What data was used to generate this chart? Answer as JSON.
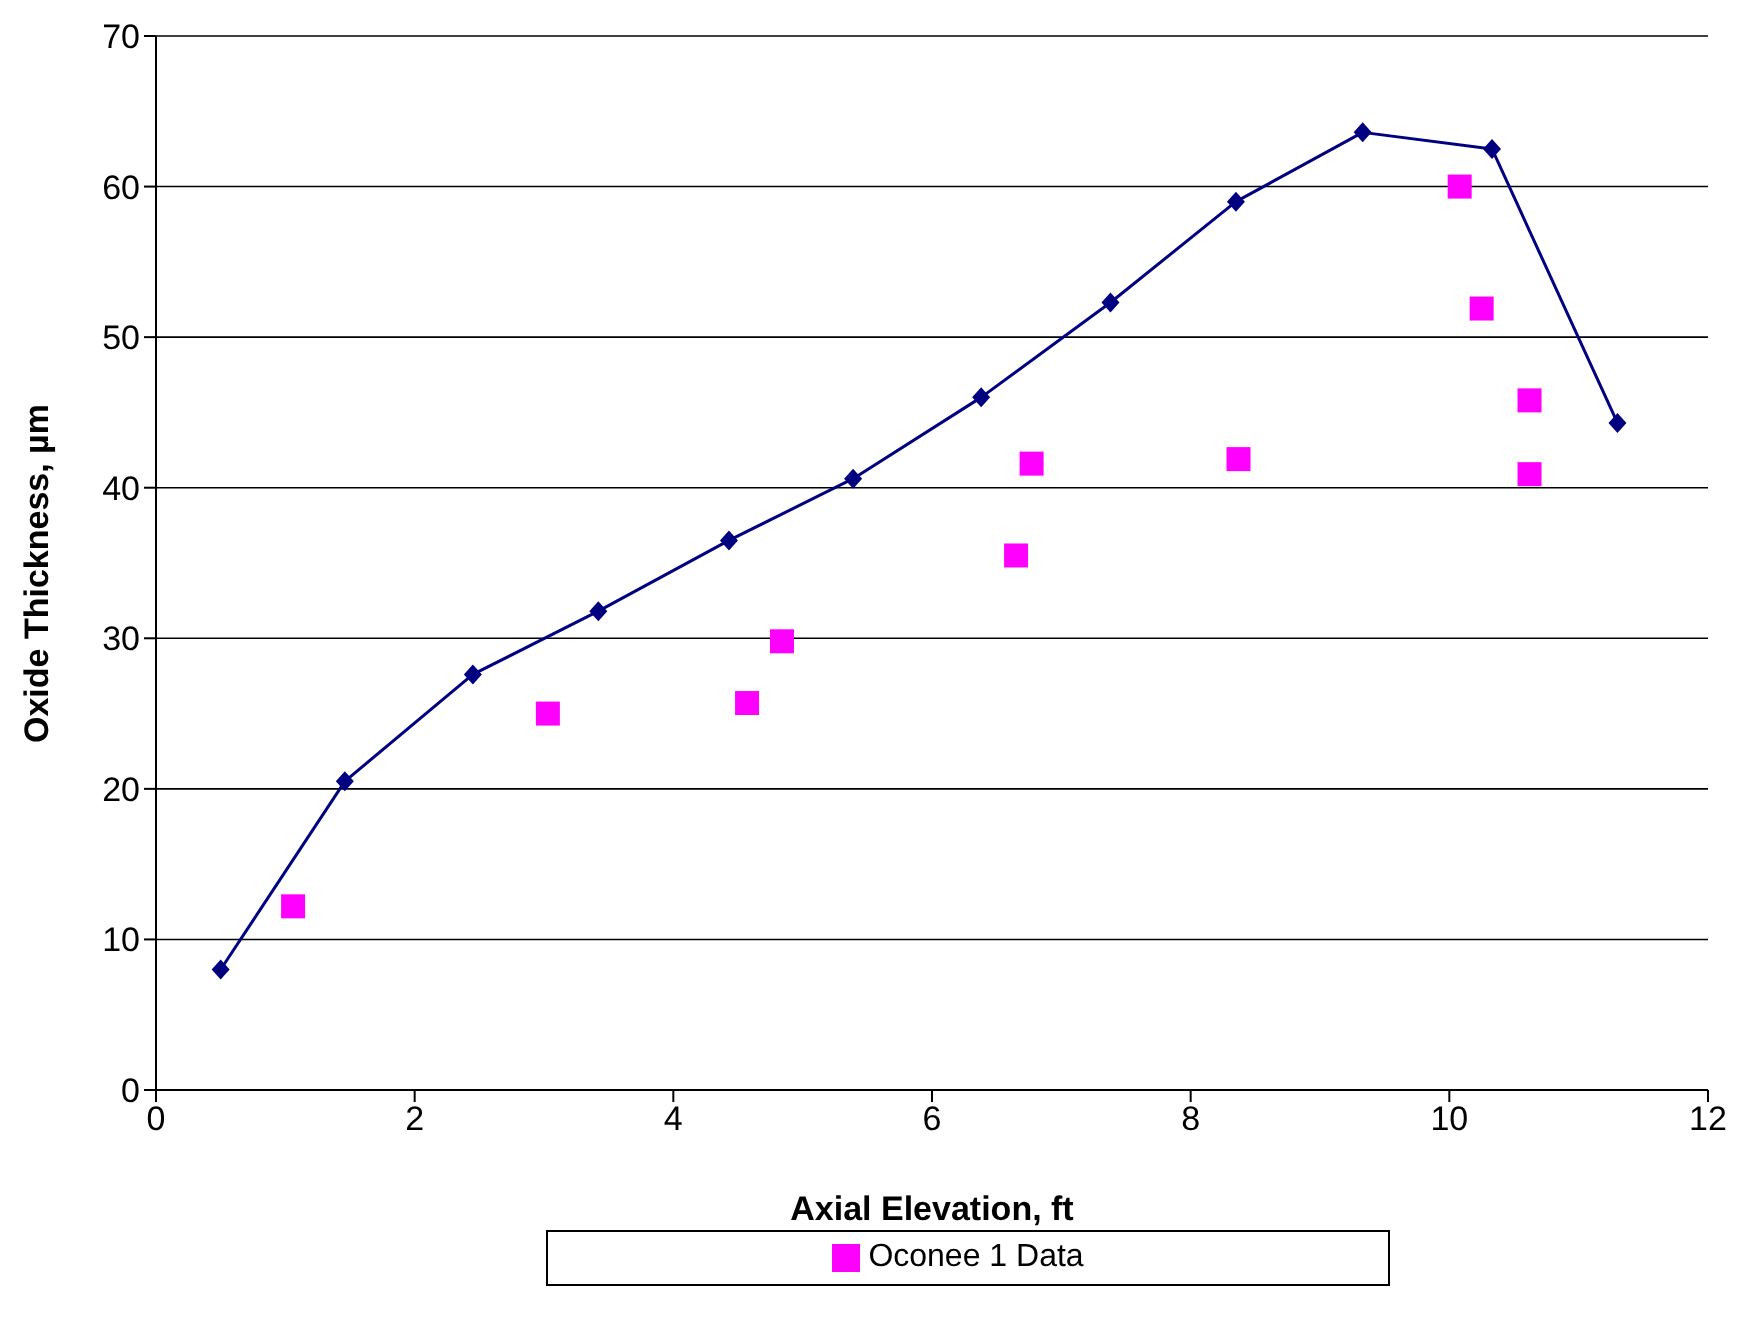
{
  "chart_data": {
    "type": "line",
    "xlabel": "Axial Elevation, ft",
    "ylabel": "Oxide Thickness, µm",
    "xlim": [
      0,
      12
    ],
    "xticks": [
      0,
      2,
      4,
      6,
      8,
      10,
      12
    ],
    "ylim": [
      0,
      70
    ],
    "yticks": [
      0,
      10,
      20,
      30,
      40,
      50,
      60,
      70
    ],
    "grid": "y",
    "legend": "bottom",
    "series": [
      {
        "color": "#000080",
        "marker": "diamond",
        "line_style": "solid",
        "x": [
          0.5,
          1.46,
          2.45,
          3.42,
          4.43,
          5.39,
          6.38,
          7.38,
          8.35,
          9.33,
          10.33,
          11.3
        ],
        "values": [
          8,
          20.5,
          27.6,
          31.8,
          36.5,
          40.6,
          46,
          52.3,
          59,
          63.6,
          62.5,
          44.3
        ]
      },
      {
        "type": "scatter",
        "name": "Oconee 1 Data",
        "color": "#ff00ff",
        "marker": "square",
        "x": [
          1.06,
          3.03,
          4.57,
          4.84,
          6.65,
          6.77,
          8.37,
          10.08,
          10.25,
          10.62,
          10.62
        ],
        "values": [
          12.2,
          25,
          25.7,
          29.8,
          35.5,
          41.6,
          41.9,
          60,
          51.9,
          45.8,
          40.9
        ]
      }
    ]
  }
}
